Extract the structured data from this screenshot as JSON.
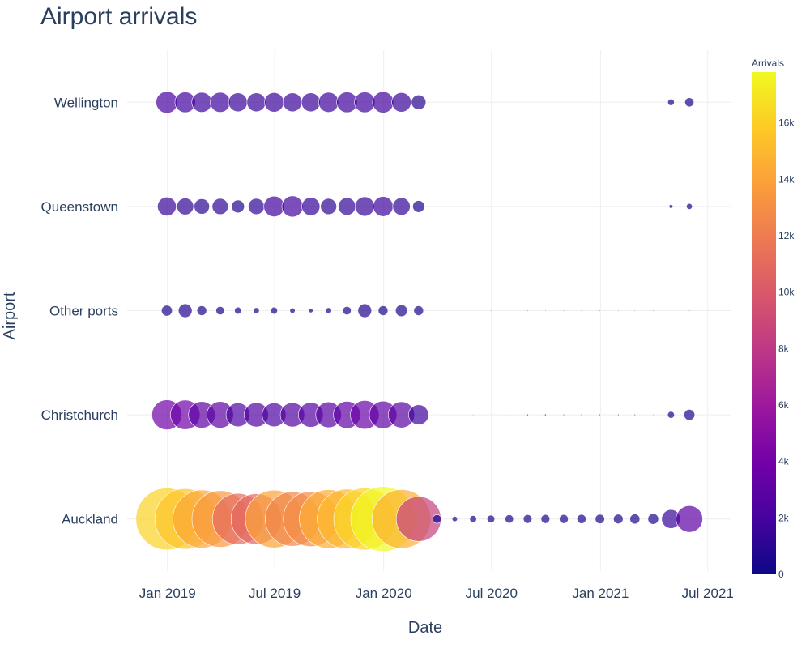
{
  "chart_data": {
    "type": "scatter",
    "title": "Airport arrivals",
    "xlabel": "Date",
    "ylabel": "Airport",
    "x_ticks": [
      {
        "date": "2019-01-01",
        "label": "Jan 2019"
      },
      {
        "date": "2019-07-01",
        "label": "Jul 2019"
      },
      {
        "date": "2020-01-01",
        "label": "Jan 2020"
      },
      {
        "date": "2020-07-01",
        "label": "Jul 2020"
      },
      {
        "date": "2021-01-01",
        "label": "Jan 2021"
      },
      {
        "date": "2021-07-01",
        "label": "Jul 2021"
      }
    ],
    "xlim": [
      "2018-10-25",
      "2021-08-10"
    ],
    "categories": [
      "Auckland",
      "Christchurch",
      "Other ports",
      "Queenstown",
      "Wellington"
    ],
    "dates": [
      "2018-12-31",
      "2019-01-31",
      "2019-02-28",
      "2019-03-31",
      "2019-04-30",
      "2019-05-31",
      "2019-06-30",
      "2019-07-31",
      "2019-08-31",
      "2019-09-30",
      "2019-10-31",
      "2019-11-30",
      "2019-12-31",
      "2020-01-31",
      "2020-02-29",
      "2020-03-31",
      "2020-04-30",
      "2020-05-31",
      "2020-06-30",
      "2020-07-31",
      "2020-08-31",
      "2020-09-30",
      "2020-10-31",
      "2020-11-30",
      "2020-12-31",
      "2021-01-31",
      "2021-02-28",
      "2021-03-31",
      "2021-04-30",
      "2021-05-31"
    ],
    "series": [
      {
        "name": "Auckland",
        "values": [
          16200,
          15500,
          14200,
          13500,
          11000,
          10800,
          14000,
          12500,
          12800,
          14500,
          15000,
          16300,
          17800,
          14600,
          8500,
          320,
          120,
          200,
          250,
          300,
          320,
          330,
          340,
          350,
          370,
          390,
          420,
          480,
          1500,
          3000
        ]
      },
      {
        "name": "Christchurch",
        "values": [
          3800,
          3700,
          3000,
          3000,
          2400,
          2500,
          2400,
          2500,
          2600,
          2800,
          3100,
          3500,
          3200,
          2900,
          1700,
          8,
          null,
          3,
          null,
          8,
          10,
          12,
          8,
          8,
          8,
          8,
          8,
          5,
          200,
          500
        ]
      },
      {
        "name": "Other ports",
        "values": [
          500,
          800,
          400,
          300,
          200,
          150,
          200,
          120,
          80,
          150,
          300,
          800,
          400,
          600,
          400,
          null,
          null,
          null,
          2,
          null,
          2,
          2,
          2,
          2,
          2,
          2,
          2,
          2,
          2,
          2
        ]
      },
      {
        "name": "Queenstown",
        "values": [
          1500,
          1200,
          1000,
          1100,
          700,
          1100,
          1800,
          1900,
          1400,
          1100,
          1300,
          1600,
          1700,
          1300,
          600,
          null,
          null,
          null,
          null,
          null,
          null,
          null,
          null,
          null,
          null,
          null,
          null,
          null,
          60,
          150
        ]
      },
      {
        "name": "Wellington",
        "values": [
          2000,
          1800,
          1700,
          1700,
          1500,
          1500,
          1600,
          1500,
          1500,
          1700,
          1800,
          1800,
          1900,
          1600,
          900,
          null,
          null,
          null,
          null,
          null,
          null,
          null,
          null,
          null,
          null,
          null,
          null,
          null,
          180,
          350
        ]
      }
    ],
    "color_scale": {
      "title": "Arrivals",
      "min": 0,
      "max": 17800,
      "ticks": [
        {
          "value": 0,
          "label": "0"
        },
        {
          "value": 2000,
          "label": "2k"
        },
        {
          "value": 4000,
          "label": "4k"
        },
        {
          "value": 6000,
          "label": "6k"
        },
        {
          "value": 8000,
          "label": "8k"
        },
        {
          "value": 10000,
          "label": "10k"
        },
        {
          "value": 12000,
          "label": "12k"
        },
        {
          "value": 14000,
          "label": "14k"
        },
        {
          "value": 16000,
          "label": "16k"
        }
      ],
      "colors": [
        "#0d0887",
        "#46039f",
        "#7201a8",
        "#9c179e",
        "#bd3786",
        "#d8576b",
        "#ed7953",
        "#fb9f3a",
        "#fdca26",
        "#f0f921"
      ]
    },
    "grid": true,
    "legend": "colorbar-right"
  }
}
